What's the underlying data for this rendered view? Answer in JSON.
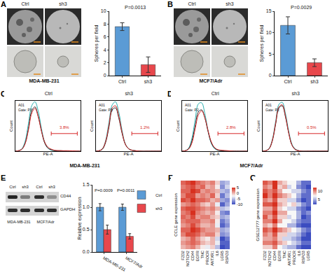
{
  "chart_data": [
    {
      "panel": "A",
      "type": "bar",
      "subtitle": "MDA-MB-231",
      "image_labels": [
        "Ctrl",
        "sh3"
      ],
      "categories": [
        "Ctrl",
        "sh3"
      ],
      "values": [
        7.6,
        1.7
      ],
      "errors": [
        0.6,
        1.2
      ],
      "colors": [
        "#5b9bd5",
        "#e8474c"
      ],
      "ylabel": "Spheres per field",
      "ylim": [
        0,
        10
      ],
      "yticks": [
        0,
        2,
        4,
        6,
        8,
        10
      ],
      "annotations": [
        "P=0.0013"
      ],
      "grid": false
    },
    {
      "panel": "B",
      "type": "bar",
      "subtitle": "MCF7/Adr",
      "image_labels": [
        "Ctrl",
        "sh3"
      ],
      "categories": [
        "Ctrl",
        "sh3"
      ],
      "values": [
        11.7,
        3.0
      ],
      "errors": [
        2.0,
        0.9
      ],
      "colors": [
        "#5b9bd5",
        "#e8474c"
      ],
      "ylabel": "Spheres per field",
      "ylim": [
        0,
        15
      ],
      "yticks": [
        0,
        5,
        10,
        15
      ],
      "annotations": [
        "P=0.0029"
      ],
      "grid": false
    },
    {
      "panel": "C",
      "type": "line",
      "subtitle": "MDA-MB-231",
      "xlabel": "PE-A",
      "ylabel": "Count",
      "xlim": [
        0,
        100
      ],
      "ylim": [
        0,
        100
      ],
      "tick_labels": false,
      "plots": [
        {
          "title": "Ctrl",
          "header": [
            "A01",
            "Gate: P3"
          ],
          "gate": [
            55,
            95
          ],
          "gate_label": "3.8%",
          "x": [
            0,
            5,
            10,
            15,
            20,
            25,
            30,
            35,
            40,
            45,
            50,
            55,
            60,
            70,
            80,
            100
          ],
          "series": [
            {
              "color": "#2ab0b0",
              "values": [
                0,
                1,
                5,
                20,
                55,
                90,
                98,
                80,
                45,
                18,
                6,
                2,
                1,
                0,
                0,
                0
              ]
            },
            {
              "color": "#222222",
              "values": [
                0,
                1,
                4,
                16,
                45,
                80,
                88,
                70,
                40,
                16,
                6,
                3,
                1,
                1,
                0,
                0
              ]
            },
            {
              "color": "#d62728",
              "values": [
                0,
                1,
                4,
                15,
                42,
                75,
                85,
                68,
                40,
                18,
                8,
                4,
                2,
                1,
                1,
                0
              ]
            }
          ]
        },
        {
          "title": "sh3",
          "header": [
            "A01",
            "Gate: P3"
          ],
          "gate": [
            55,
            95
          ],
          "gate_label": "1.2%",
          "x": [
            0,
            5,
            10,
            15,
            20,
            25,
            30,
            35,
            40,
            45,
            50,
            55,
            60,
            70,
            80,
            100
          ],
          "series": [
            {
              "color": "#2ab0b0",
              "values": [
                0,
                1,
                5,
                22,
                58,
                92,
                98,
                78,
                42,
                15,
                5,
                2,
                1,
                0,
                0,
                0
              ]
            },
            {
              "color": "#222222",
              "values": [
                0,
                1,
                4,
                18,
                48,
                82,
                86,
                66,
                36,
                14,
                5,
                2,
                1,
                0,
                0,
                0
              ]
            },
            {
              "color": "#d62728",
              "values": [
                0,
                1,
                5,
                20,
                52,
                86,
                90,
                70,
                38,
                14,
                5,
                2,
                1,
                0,
                0,
                0
              ]
            }
          ]
        }
      ]
    },
    {
      "panel": "D",
      "type": "line",
      "subtitle": "MCF7/Adr",
      "xlabel": "PE-A",
      "ylabel": "Count",
      "xlim": [
        0,
        100
      ],
      "ylim": [
        0,
        100
      ],
      "tick_labels": false,
      "plots": [
        {
          "title": "Ctrl",
          "header": [
            "A01",
            "Gate: P2"
          ],
          "gate": [
            55,
            95
          ],
          "gate_label": "2.8%",
          "x": [
            0,
            5,
            10,
            15,
            20,
            25,
            30,
            35,
            40,
            45,
            50,
            55,
            60,
            70,
            80,
            100
          ],
          "series": [
            {
              "color": "#2ab0b0",
              "values": [
                0,
                1,
                6,
                25,
                62,
                94,
                96,
                74,
                40,
                15,
                5,
                2,
                1,
                0,
                0,
                0
              ]
            },
            {
              "color": "#222222",
              "values": [
                0,
                1,
                5,
                20,
                50,
                78,
                82,
                66,
                38,
                16,
                6,
                2,
                1,
                0,
                0,
                0
              ]
            },
            {
              "color": "#d62728",
              "values": [
                0,
                1,
                4,
                16,
                44,
                72,
                80,
                66,
                40,
                18,
                7,
                3,
                2,
                1,
                0,
                0
              ]
            }
          ]
        },
        {
          "title": "sh3",
          "header": [
            "A01",
            "Gate: P2"
          ],
          "gate": [
            55,
            95
          ],
          "gate_label": "0.5%",
          "x": [
            0,
            5,
            10,
            15,
            20,
            25,
            30,
            35,
            40,
            45,
            50,
            55,
            60,
            70,
            80,
            100
          ],
          "series": [
            {
              "color": "#2ab0b0",
              "values": [
                0,
                1,
                6,
                24,
                60,
                93,
                97,
                75,
                40,
                14,
                4,
                1,
                0,
                0,
                0,
                0
              ]
            },
            {
              "color": "#222222",
              "values": [
                0,
                1,
                5,
                21,
                54,
                86,
                90,
                68,
                36,
                12,
                4,
                1,
                0,
                0,
                0,
                0
              ]
            },
            {
              "color": "#d62728",
              "values": [
                0,
                1,
                5,
                22,
                56,
                88,
                92,
                70,
                36,
                12,
                3,
                1,
                0,
                0,
                0,
                0
              ]
            }
          ]
        }
      ]
    },
    {
      "panel": "E",
      "type": "bar",
      "blot": {
        "lanes": [
          "Ctrl",
          "sh3",
          "Ctrl",
          "sh3"
        ],
        "rows": [
          "CD44",
          "GAPDH"
        ],
        "groups": [
          "MDA-MB-231",
          "MCF7/Adr"
        ]
      },
      "categories": [
        "MDA-MB-231",
        "MCF7/Adr"
      ],
      "ylabel": "Relative expression",
      "series": [
        {
          "name": "Ctrl",
          "color": "#5b9bd5",
          "values": [
            1.0,
            1.0
          ],
          "errors": [
            0.08,
            0.07
          ]
        },
        {
          "name": "sh3",
          "color": "#e8474c",
          "values": [
            0.5,
            0.35
          ],
          "errors": [
            0.1,
            0.06
          ]
        }
      ],
      "p_values": [
        "P=0.0009",
        "P=0.0011"
      ],
      "ylim": [
        0,
        1.5
      ],
      "yticks": [
        {
          "value": 0,
          "label": "0.0"
        },
        {
          "value": 0.5,
          "label": "0.5"
        },
        {
          "value": 1,
          "label": "1.0"
        },
        {
          "value": 1.5,
          "label": "1.5"
        }
      ],
      "legend": "top right",
      "grid": false
    },
    {
      "panel": "F",
      "type": "heatmap",
      "ylabel": "CCLE gene expression",
      "tick_labels": "x",
      "columns": [
        "FZD2",
        "NOTCH2",
        "CD44",
        "EGFR",
        "TNC",
        "PROCR",
        "ANTXR1",
        "IL6",
        "LGR5",
        "RSPO3"
      ],
      "zlim": [
        -10,
        5
      ],
      "zticks": [
        -10,
        -5,
        0,
        5
      ],
      "z": [
        [
          3,
          4,
          5,
          3,
          2,
          1,
          2,
          -1,
          -6,
          -5
        ],
        [
          2,
          3,
          4,
          2,
          3,
          0,
          1,
          -2,
          -7,
          -4
        ],
        [
          3,
          3,
          5,
          4,
          1,
          2,
          1,
          0,
          -5,
          -6
        ],
        [
          2,
          4,
          4,
          1,
          2,
          1,
          3,
          -1,
          -8,
          -5
        ],
        [
          4,
          3,
          5,
          3,
          3,
          2,
          0,
          1,
          -6,
          -7
        ],
        [
          1,
          2,
          3,
          2,
          0,
          -1,
          1,
          -3,
          -9,
          -6
        ],
        [
          3,
          4,
          4,
          3,
          2,
          1,
          2,
          0,
          -5,
          -4
        ],
        [
          2,
          3,
          5,
          2,
          1,
          0,
          1,
          -2,
          -7,
          -8
        ],
        [
          3,
          2,
          4,
          1,
          2,
          2,
          0,
          -1,
          -6,
          -5
        ],
        [
          2,
          3,
          3,
          3,
          1,
          1,
          2,
          -2,
          -8,
          -6
        ],
        [
          1,
          2,
          4,
          2,
          0,
          0,
          1,
          -3,
          -9,
          -7
        ],
        [
          3,
          3,
          5,
          4,
          2,
          1,
          1,
          0,
          -6,
          -5
        ],
        [
          2,
          4,
          4,
          3,
          1,
          2,
          2,
          -1,
          -7,
          -6
        ],
        [
          0,
          1,
          3,
          1,
          -1,
          -2,
          0,
          -4,
          -10,
          -8
        ],
        [
          1,
          2,
          3,
          2,
          0,
          -1,
          0,
          -3,
          -9,
          -9
        ],
        [
          0,
          1,
          2,
          0,
          -2,
          -3,
          -1,
          -5,
          -10,
          -9
        ]
      ]
    },
    {
      "panel": "G",
      "type": "heatmap",
      "ylabel": "GSE12777 gene expression",
      "tick_labels": "x",
      "columns": [
        "FZD2",
        "NOTCH2",
        "CD44",
        "EGFR",
        "TNC",
        "ANTXR1",
        "PROCR",
        "IL6",
        "RSPO3",
        "LGR5"
      ],
      "zlim": [
        2,
        12
      ],
      "zticks": [
        5,
        10
      ],
      "z": [
        [
          11,
          10,
          12,
          9,
          8,
          7,
          7,
          5,
          3,
          3
        ],
        [
          10,
          9,
          12,
          8,
          9,
          6,
          7,
          4,
          3,
          2
        ],
        [
          11,
          10,
          11,
          9,
          7,
          7,
          6,
          6,
          4,
          3
        ],
        [
          12,
          10,
          12,
          10,
          9,
          8,
          7,
          5,
          3,
          3
        ],
        [
          10,
          9,
          11,
          8,
          8,
          6,
          6,
          4,
          2,
          3
        ],
        [
          11,
          11,
          12,
          9,
          8,
          7,
          8,
          6,
          4,
          3
        ],
        [
          9,
          9,
          11,
          8,
          7,
          6,
          6,
          4,
          3,
          2
        ],
        [
          10,
          10,
          12,
          9,
          9,
          7,
          7,
          5,
          3,
          4
        ],
        [
          11,
          9,
          11,
          8,
          8,
          6,
          7,
          5,
          2,
          3
        ],
        [
          10,
          10,
          12,
          9,
          7,
          7,
          6,
          4,
          3,
          3
        ],
        [
          9,
          8,
          10,
          7,
          7,
          5,
          5,
          3,
          2,
          2
        ],
        [
          11,
          10,
          12,
          10,
          9,
          8,
          7,
          6,
          4,
          3
        ],
        [
          10,
          9,
          11,
          8,
          8,
          6,
          6,
          5,
          3,
          2
        ],
        [
          9,
          9,
          10,
          8,
          6,
          6,
          5,
          4,
          2,
          2
        ],
        [
          10,
          10,
          11,
          9,
          8,
          7,
          6,
          5,
          3,
          3
        ],
        [
          8,
          8,
          10,
          7,
          6,
          5,
          5,
          3,
          2,
          2
        ]
      ]
    }
  ]
}
